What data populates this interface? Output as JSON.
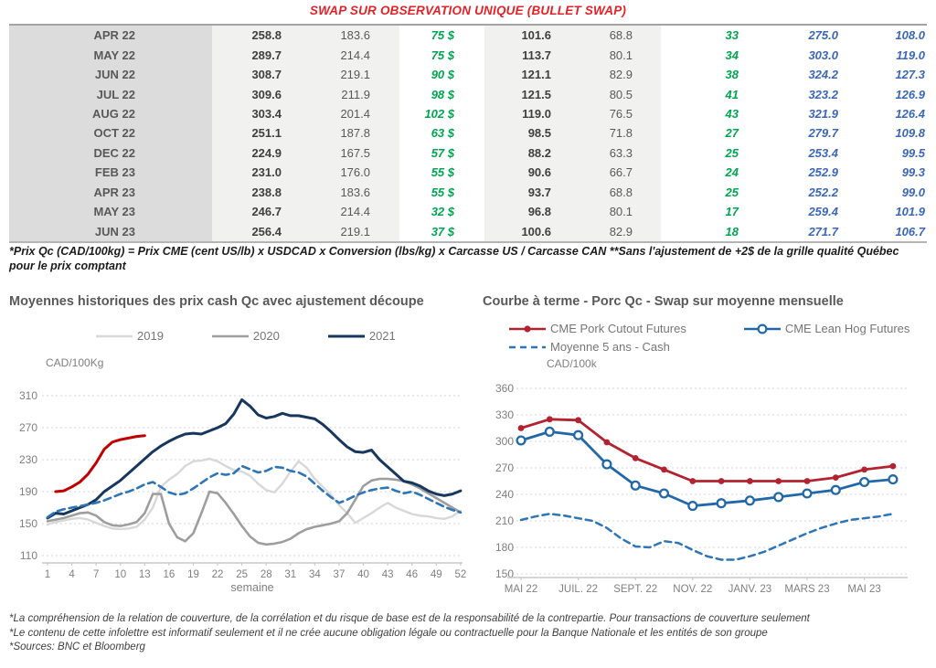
{
  "title": "SWAP SUR OBSERVATION UNIQUE (BULLET SWAP)",
  "table": {
    "rows": [
      [
        "APR 22",
        "258.8",
        "183.6",
        "75 $",
        "101.6",
        "68.8",
        "33",
        "275.0",
        "108.0"
      ],
      [
        "MAY 22",
        "289.7",
        "214.4",
        "75 $",
        "113.7",
        "80.1",
        "34",
        "303.0",
        "119.0"
      ],
      [
        "JUN 22",
        "308.7",
        "219.1",
        "90 $",
        "121.1",
        "82.9",
        "38",
        "324.2",
        "127.3"
      ],
      [
        "JUL 22",
        "309.6",
        "211.9",
        "98 $",
        "121.5",
        "80.5",
        "41",
        "323.2",
        "126.9"
      ],
      [
        "AUG 22",
        "303.4",
        "201.4",
        "102 $",
        "119.0",
        "76.5",
        "43",
        "321.9",
        "126.4"
      ],
      [
        "OCT 22",
        "251.1",
        "187.8",
        "63 $",
        "98.5",
        "71.8",
        "27",
        "279.7",
        "109.8"
      ],
      [
        "DEC 22",
        "224.9",
        "167.5",
        "57 $",
        "88.2",
        "63.3",
        "25",
        "253.4",
        "99.5"
      ],
      [
        "FEB 23",
        "231.0",
        "176.0",
        "55 $",
        "90.6",
        "66.7",
        "24",
        "252.9",
        "99.3"
      ],
      [
        "APR 23",
        "238.8",
        "183.6",
        "55 $",
        "93.7",
        "68.8",
        "25",
        "252.2",
        "99.0"
      ],
      [
        "MAY 23",
        "246.7",
        "214.4",
        "32 $",
        "96.8",
        "80.1",
        "17",
        "259.4",
        "101.9"
      ],
      [
        "JUN 23",
        "256.4",
        "219.1",
        "37 $",
        "100.6",
        "82.9",
        "18",
        "271.7",
        "106.7"
      ]
    ]
  },
  "table_footnote": "*Prix Qc (CAD/100kg) = Prix CME (cent US/lb) x USDCAD x Conversion (lbs/kg) x Carcasse US / Carcasse CAN **Sans l'ajustement de +2$ de la grille qualité Québec pour le prix comptant",
  "chart_data": [
    {
      "type": "line",
      "title": "Moyennes historiques des prix cash Qc avec ajustement découpe",
      "ylabel": "CAD/100Kg",
      "xlabel": "semaine",
      "xlim": [
        1,
        52
      ],
      "ylim": [
        110,
        310
      ],
      "x_ticks": [
        1,
        4,
        7,
        10,
        13,
        16,
        19,
        22,
        25,
        28,
        31,
        34,
        37,
        40,
        43,
        46,
        49,
        52
      ],
      "y_ticks": [
        110,
        150,
        190,
        230,
        270,
        310
      ],
      "grid": "dotted-horizontal",
      "legend_position": "top",
      "legend": [
        "2019",
        "2020",
        "2021"
      ],
      "series": [
        {
          "name": "2019",
          "color": "#d8d8d8",
          "width": 2.4,
          "in_legend": true,
          "values": [
            149,
            152,
            154,
            156,
            157,
            155,
            151,
            147,
            144,
            143,
            144,
            146,
            155,
            170,
            196,
            205,
            212,
            222,
            228,
            229,
            231,
            228,
            222,
            217,
            215,
            210,
            200,
            192,
            189,
            200,
            215,
            228,
            220,
            206,
            196,
            186,
            173,
            163,
            151,
            157,
            163,
            170,
            176,
            170,
            166,
            162,
            160,
            159,
            157,
            156,
            159,
            166
          ]
        },
        {
          "name": "2020",
          "color": "#9e9e9e",
          "width": 2.6,
          "in_legend": true,
          "values": [
            153,
            155,
            157,
            160,
            163,
            164,
            160,
            152,
            148,
            147,
            149,
            152,
            163,
            187,
            187,
            150,
            133,
            128,
            138,
            163,
            190,
            188,
            176,
            162,
            147,
            134,
            126,
            124,
            125,
            127,
            131,
            138,
            143,
            146,
            148,
            150,
            153,
            163,
            180,
            197,
            204,
            206,
            206,
            205,
            203,
            199,
            194,
            188,
            182,
            176,
            170,
            164
          ]
        },
        {
          "name": "2021",
          "color": "#17375e",
          "width": 3,
          "in_legend": true,
          "values": [
            157,
            163,
            162,
            166,
            170,
            174,
            180,
            190,
            197,
            204,
            213,
            222,
            231,
            240,
            247,
            253,
            258,
            262,
            263,
            262,
            266,
            270,
            275,
            287,
            305,
            297,
            286,
            282,
            284,
            288,
            285,
            285,
            283,
            281,
            274,
            265,
            255,
            246,
            240,
            239,
            242,
            230,
            221,
            212,
            203,
            201,
            197,
            191,
            187,
            185,
            187,
            191
          ]
        },
        {
          "name": "2022",
          "color": "#c00000",
          "width": 3,
          "in_legend": false,
          "x": [
            2,
            3,
            4,
            5,
            6,
            7,
            8,
            9,
            10,
            11,
            12,
            13
          ],
          "values": [
            190,
            191,
            196,
            202,
            212,
            226,
            243,
            252,
            255,
            257,
            259,
            260
          ]
        },
        {
          "name": "Moyenne 5 ans",
          "color": "#2e75b6",
          "width": 2.6,
          "dash": "8 5",
          "in_legend": false,
          "values": [
            158,
            165,
            168,
            170,
            172,
            174,
            176,
            179,
            183,
            187,
            190,
            194,
            199,
            202,
            196,
            189,
            186,
            188,
            194,
            201,
            208,
            213,
            211,
            213,
            222,
            218,
            214,
            216,
            221,
            220,
            216,
            214,
            209,
            200,
            191,
            183,
            176,
            180,
            185,
            189,
            192,
            194,
            195,
            191,
            188,
            190,
            186,
            181,
            176,
            171,
            167,
            164
          ]
        }
      ]
    },
    {
      "type": "line",
      "title": "Courbe à terme - Porc Qc - Swap sur moyenne mensuelle",
      "ylabel": "CAD/100k",
      "xlabel": "",
      "ylim": [
        150,
        360
      ],
      "x_tick_positions": [
        0,
        2,
        4,
        6,
        8,
        10,
        12
      ],
      "x_tick_labels": [
        "MAI 22",
        "JUIL. 22",
        "SEPT. 22",
        "NOV. 22",
        "JANV. 23",
        "MARS 23",
        "MAI 23"
      ],
      "y_ticks": [
        150,
        180,
        210,
        240,
        270,
        300,
        330,
        360
      ],
      "grid": "dotted-horizontal",
      "legend_position": "top",
      "legend": [
        "CME Pork Cutout Futures",
        "CME Lean Hog Futures",
        "Moyenne 5 ans - Cash"
      ],
      "series": [
        {
          "name": "CME Pork Cutout Futures",
          "color": "#b22230",
          "width": 2.8,
          "marker": "filled-dot",
          "in_legend": true,
          "values": [
            315,
            325,
            324,
            299,
            281,
            268,
            255,
            255,
            255,
            255,
            255,
            259,
            268,
            272
          ]
        },
        {
          "name": "CME Lean Hog Futures",
          "color": "#2268a8",
          "width": 2.8,
          "marker": "open-circle",
          "in_legend": true,
          "values": [
            301,
            311,
            307,
            274,
            250,
            241,
            227,
            230,
            233,
            237,
            241,
            245,
            254,
            257
          ]
        },
        {
          "name": "Moyenne 5 ans - Cash",
          "color": "#2e75b6",
          "width": 2.5,
          "dash": "7 5",
          "in_legend": true,
          "x": [
            0,
            0.5,
            1,
            1.5,
            2,
            2.5,
            3,
            3.5,
            4,
            4.5,
            5,
            5.5,
            6,
            6.5,
            7,
            7.5,
            8,
            8.5,
            9,
            9.5,
            10,
            10.5,
            11,
            11.5,
            12,
            12.5,
            13
          ],
          "values": [
            211,
            215,
            218,
            216,
            213,
            210,
            202,
            190,
            181,
            180,
            187,
            185,
            177,
            170,
            166,
            166,
            170,
            175,
            182,
            189,
            196,
            202,
            207,
            211,
            213,
            215,
            218
          ]
        }
      ]
    }
  ],
  "footnotes": [
    "*La compréhension de la relation de couverture, de la corrélation et du risque de base est de la responsabilité de la contrepartie. Pour transactions de couverture seulement",
    "*Le contenu de cette infolettre est informatif seulement et il ne crée aucune obligation légale ou contractuelle pour la Banque Nationale et les entités de son groupe",
    "*Sources: BNC et Bloomberg"
  ]
}
